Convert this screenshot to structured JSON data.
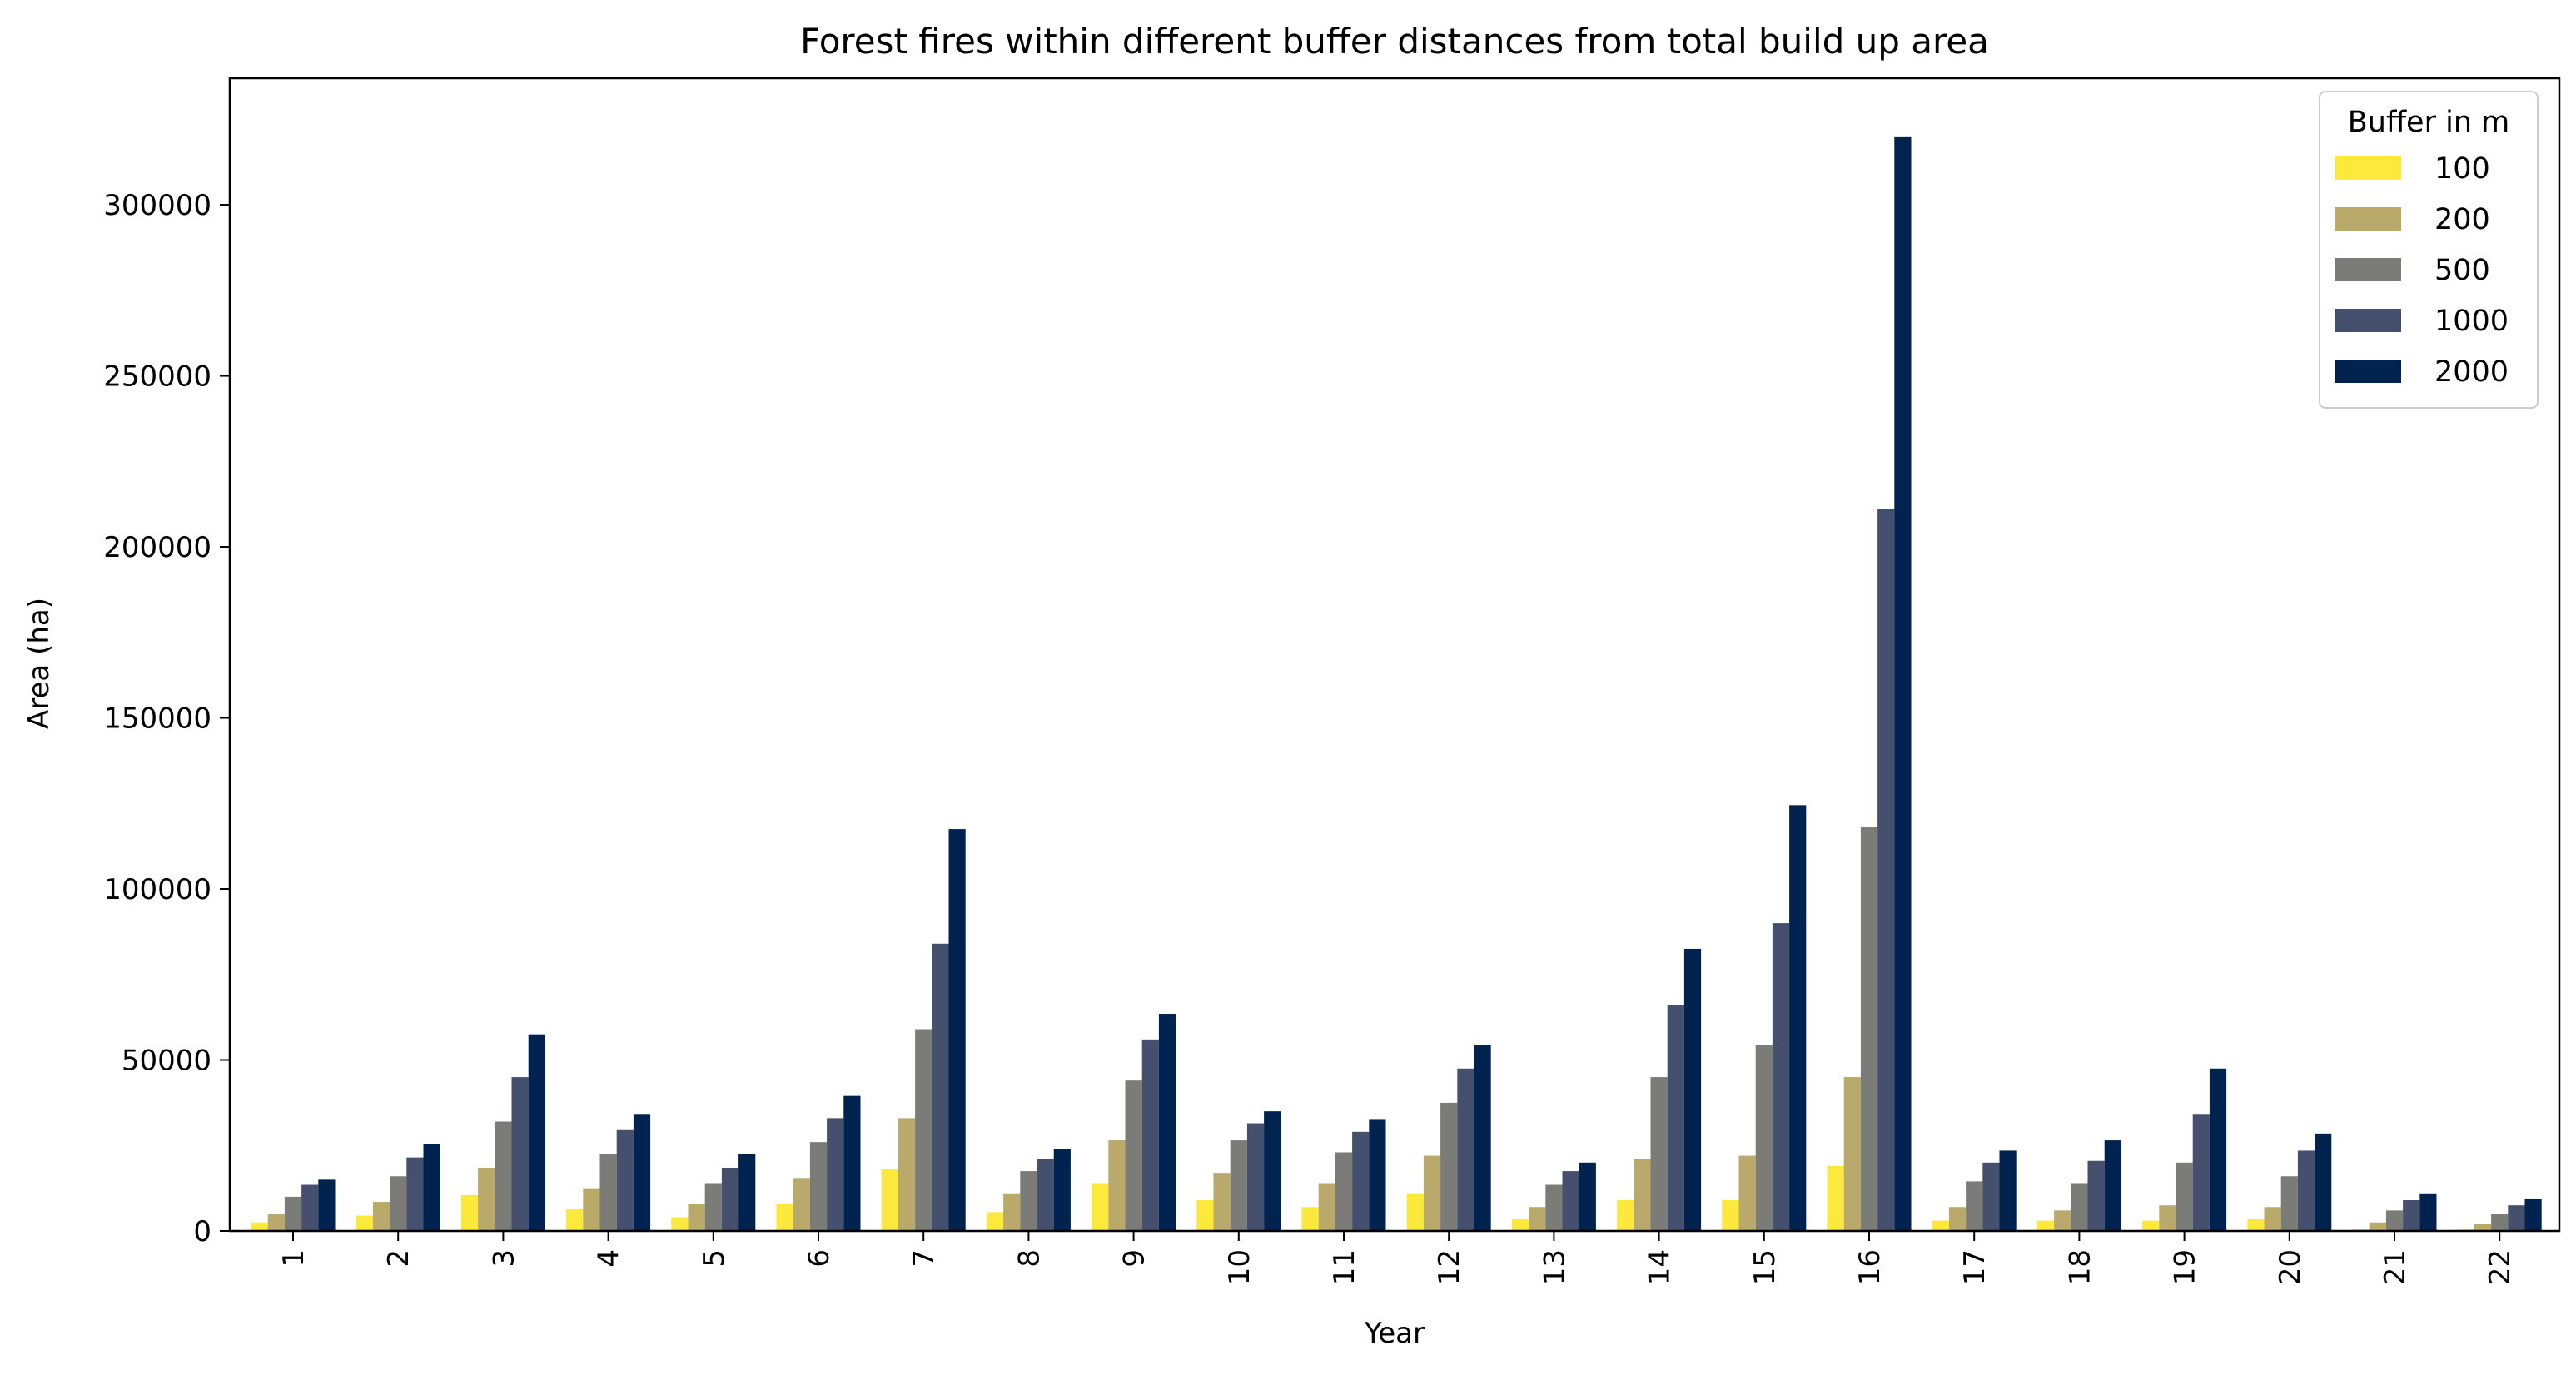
{
  "chart_data": {
    "type": "bar",
    "title": "Forest fires within different buffer distances from total build up area",
    "xlabel": "Year",
    "ylabel": "Area (ha)",
    "ylim": [
      0,
      337000
    ],
    "yticks": [
      0,
      50000,
      100000,
      150000,
      200000,
      250000,
      300000
    ],
    "grid": false,
    "legend": {
      "title": "Buffer in m",
      "placement": "top-right"
    },
    "categories": [
      "1",
      "2",
      "3",
      "4",
      "5",
      "6",
      "7",
      "8",
      "9",
      "10",
      "11",
      "12",
      "13",
      "14",
      "15",
      "16",
      "17",
      "18",
      "19",
      "20",
      "21",
      "22"
    ],
    "series": [
      {
        "name": "100",
        "color": "#fde83c",
        "values": [
          2500,
          4500,
          10500,
          6500,
          4000,
          8000,
          18000,
          5500,
          14000,
          9000,
          7000,
          11000,
          3500,
          9000,
          9000,
          19000,
          3000,
          3000,
          3000,
          3500,
          500,
          500
        ]
      },
      {
        "name": "200",
        "color": "#b9aa6c",
        "values": [
          5000,
          8500,
          18500,
          12500,
          8000,
          15500,
          33000,
          11000,
          26500,
          17000,
          14000,
          22000,
          7000,
          21000,
          22000,
          45000,
          7000,
          6000,
          7500,
          7000,
          2500,
          2000
        ]
      },
      {
        "name": "500",
        "color": "#7b7b77",
        "values": [
          10000,
          16000,
          32000,
          22500,
          14000,
          26000,
          59000,
          17500,
          44000,
          26500,
          23000,
          37500,
          13500,
          45000,
          54500,
          118000,
          14500,
          14000,
          20000,
          16000,
          6000,
          5000
        ]
      },
      {
        "name": "1000",
        "color": "#44506e",
        "values": [
          13500,
          21500,
          45000,
          29500,
          18500,
          33000,
          84000,
          21000,
          56000,
          31500,
          29000,
          47500,
          17500,
          66000,
          90000,
          211000,
          20000,
          20500,
          34000,
          23500,
          9000,
          7500
        ]
      },
      {
        "name": "2000",
        "color": "#00224e",
        "values": [
          15000,
          25500,
          57500,
          34000,
          22500,
          39500,
          117500,
          24000,
          63500,
          35000,
          32500,
          54500,
          20000,
          82500,
          124500,
          320000,
          23500,
          26500,
          47500,
          28500,
          11000,
          9500
        ]
      }
    ]
  }
}
